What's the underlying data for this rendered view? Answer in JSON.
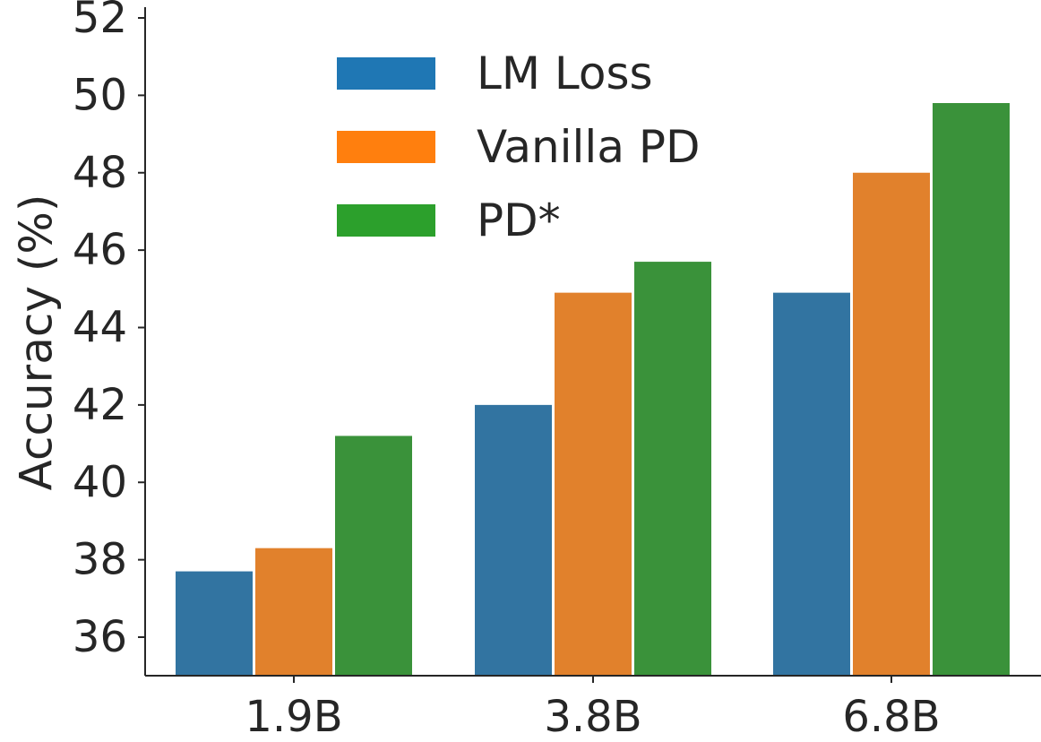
{
  "chart_data": {
    "type": "bar",
    "title": "",
    "xlabel": "",
    "ylabel": "Accuracy (%)",
    "categories": [
      "1.9B",
      "3.8B",
      "6.8B"
    ],
    "series": [
      {
        "name": "LM Loss",
        "values": [
          37.7,
          42.0,
          44.9
        ],
        "color": "#3274a1",
        "legend_color": "#1f77b4"
      },
      {
        "name": "Vanilla PD",
        "values": [
          38.3,
          44.9,
          48.0
        ],
        "color": "#e1812c",
        "legend_color": "#ff7f0e"
      },
      {
        "name": "PD*",
        "values": [
          41.2,
          45.7,
          49.8
        ],
        "color": "#3a923a",
        "legend_color": "#2ca02c"
      }
    ],
    "ylim": [
      35,
      52
    ],
    "yticks": [
      "36",
      "38",
      "40",
      "42",
      "44",
      "46",
      "48",
      "50",
      "52"
    ],
    "legend_position": "upper-left",
    "grid": false
  }
}
